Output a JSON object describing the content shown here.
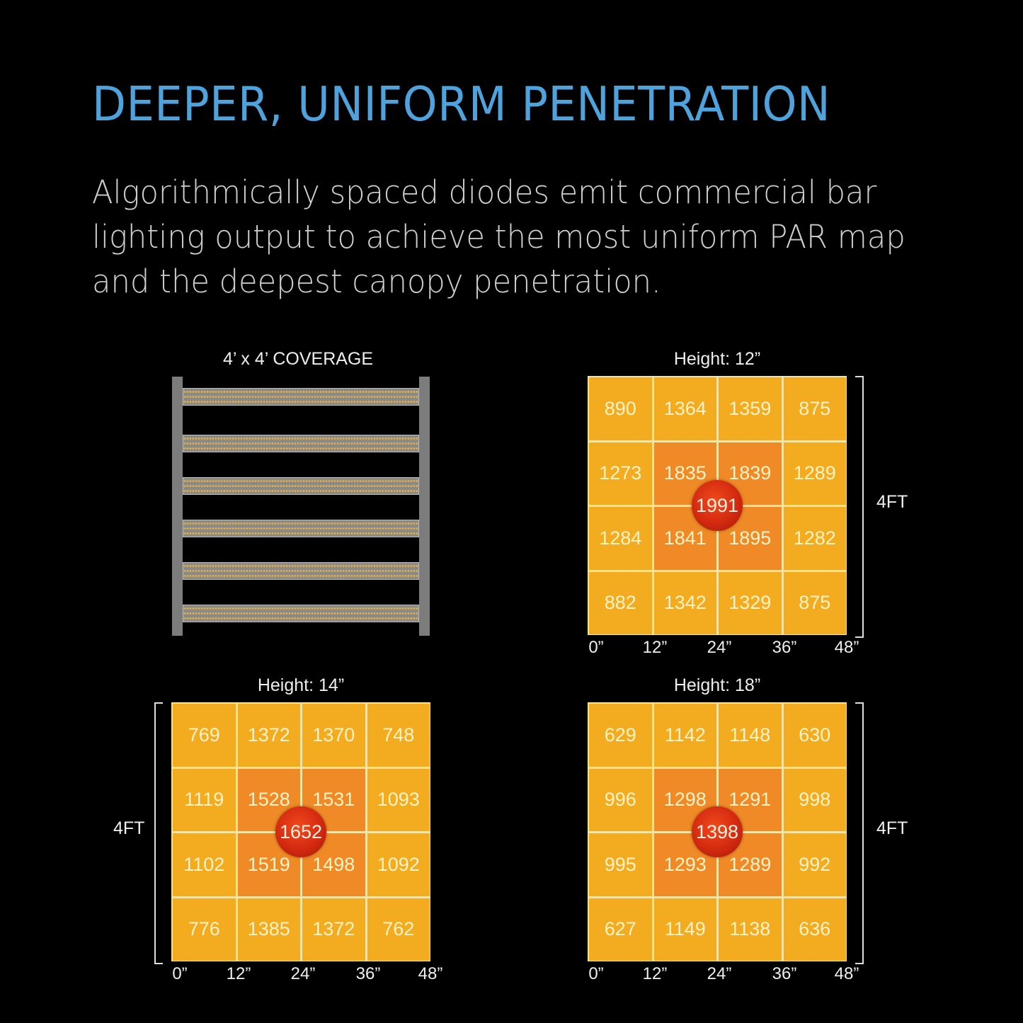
{
  "header": {
    "title": "DEEPER, UNIFORM PENETRATION",
    "description": "Algorithmically spaced diodes emit commercial bar lighting output to achieve the most uniform PAR map and the deepest canopy penetration."
  },
  "fixture": {
    "label": "4’ x 4’ COVERAGE",
    "bar_count": 6
  },
  "colors": {
    "title": "#4fa3dc",
    "outer_cell": "#f3ab1f",
    "inner_cell": "#f08a26",
    "peak": "#d32a10",
    "background": "#000000"
  },
  "chart_data": [
    {
      "type": "heatmap",
      "title": "Height: 12”",
      "x_ticks": [
        "0”",
        "12”",
        "24”",
        "36”",
        "48”"
      ],
      "side_label": "4FT",
      "side": "right",
      "values": [
        [
          890,
          1364,
          1359,
          875
        ],
        [
          1273,
          1835,
          1839,
          1289
        ],
        [
          1284,
          1841,
          1895,
          1282
        ],
        [
          882,
          1342,
          1329,
          875
        ]
      ],
      "center_value": 1991
    },
    {
      "type": "heatmap",
      "title": "Height: 14”",
      "x_ticks": [
        "0”",
        "12”",
        "24”",
        "36”",
        "48”"
      ],
      "side_label": "4FT",
      "side": "left",
      "values": [
        [
          769,
          1372,
          1370,
          748
        ],
        [
          1119,
          1528,
          1531,
          1093
        ],
        [
          1102,
          1519,
          1498,
          1092
        ],
        [
          776,
          1385,
          1372,
          762
        ]
      ],
      "center_value": 1652
    },
    {
      "type": "heatmap",
      "title": "Height: 18”",
      "x_ticks": [
        "0”",
        "12”",
        "24”",
        "36”",
        "48”"
      ],
      "side_label": "4FT",
      "side": "right",
      "values": [
        [
          629,
          1142,
          1148,
          630
        ],
        [
          996,
          1298,
          1291,
          998
        ],
        [
          995,
          1293,
          1289,
          992
        ],
        [
          627,
          1149,
          1138,
          636
        ]
      ],
      "center_value": 1398
    }
  ]
}
